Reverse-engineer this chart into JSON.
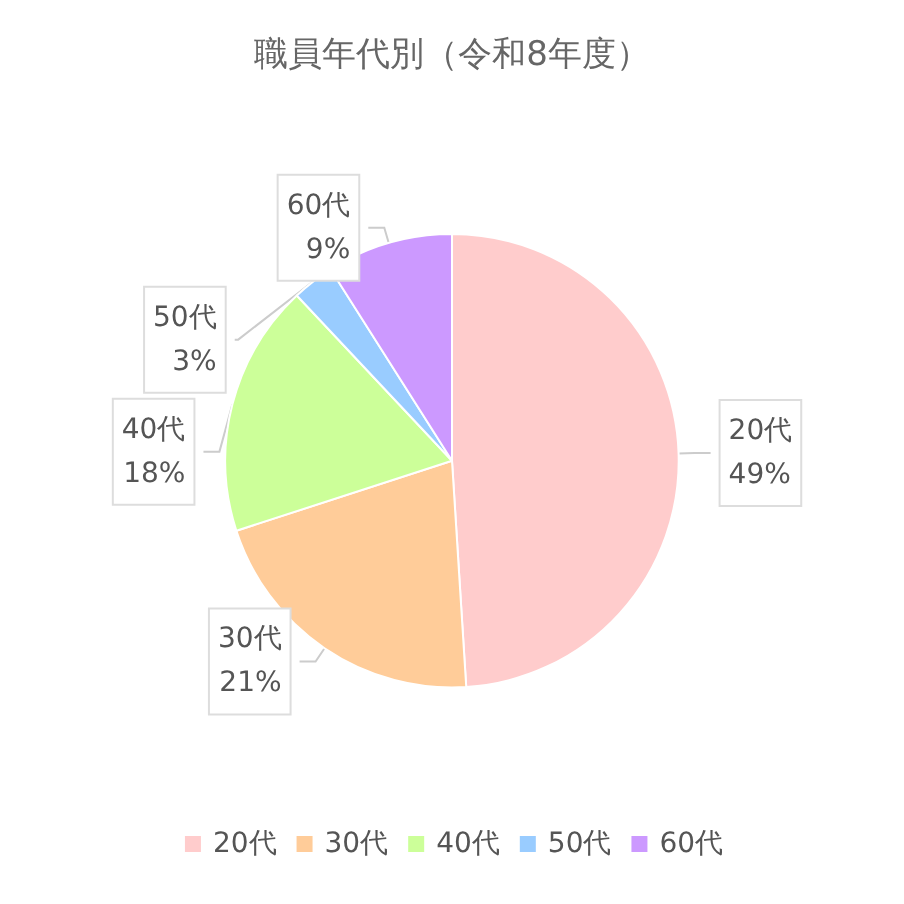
{
  "chart_data": {
    "type": "pie",
    "title": "職員年代別（令和8年度）",
    "categories": [
      "20代",
      "30代",
      "40代",
      "50代",
      "60代"
    ],
    "values": [
      49,
      21,
      18,
      3,
      9
    ],
    "colors": [
      "#ffcccc",
      "#ffcc99",
      "#ccff99",
      "#99ccff",
      "#cc99ff"
    ],
    "value_labels": [
      "49%",
      "21%",
      "18%",
      "3%",
      "9%"
    ],
    "legend": "bottom"
  }
}
